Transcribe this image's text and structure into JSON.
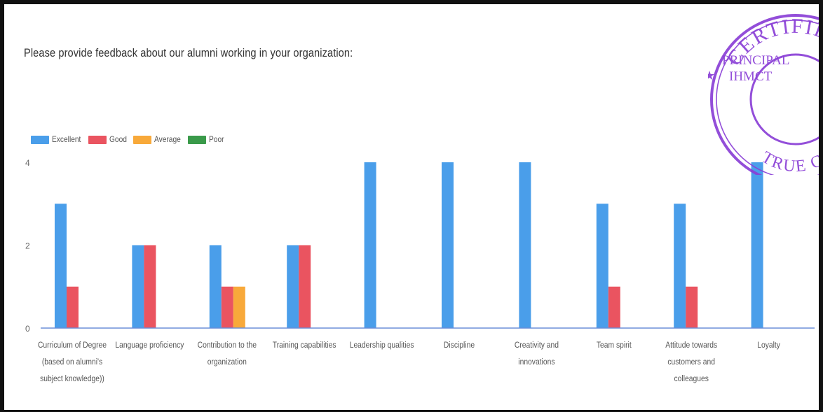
{
  "prompt": {
    "text": "Please provide feedback about our alumni working in your organization:"
  },
  "colors": {
    "Excellent": "#4a9eea",
    "Good": "#ea5460",
    "Average": "#f8a93a",
    "Poor": "#3a9a4a",
    "stamp": "#8a3fd6"
  },
  "legend": [
    {
      "label": "Excellent",
      "color": "#4a9eea"
    },
    {
      "label": "Good",
      "color": "#ea5460"
    },
    {
      "label": "Average",
      "color": "#f8a93a"
    },
    {
      "label": "Poor",
      "color": "#3a9a4a"
    }
  ],
  "chart_data": {
    "type": "bar",
    "title": "",
    "xlabel": "",
    "ylabel": "",
    "ylim": [
      0,
      4
    ],
    "yticks": [
      "0",
      "2",
      "4"
    ],
    "grid": false,
    "legend_position": "top-left",
    "categories": [
      [
        "Curriculum of Degree",
        "(based on alumni's",
        "subject knowledge))"
      ],
      [
        "Language proficiency"
      ],
      [
        "Contribution to the",
        "organization"
      ],
      [
        "Training capabilities"
      ],
      [
        "Leadership qualities"
      ],
      [
        "Discipline"
      ],
      [
        "Creativity and",
        "innovations"
      ],
      [
        "Team spirit"
      ],
      [
        "Attitude towards",
        "customers and",
        "colleagues"
      ],
      [
        "Loyalty"
      ]
    ],
    "series": [
      {
        "name": "Excellent",
        "values": [
          3,
          2,
          2,
          2,
          4,
          4,
          4,
          3,
          3,
          4
        ]
      },
      {
        "name": "Good",
        "values": [
          1,
          2,
          1,
          2,
          0,
          0,
          0,
          1,
          1,
          0
        ]
      },
      {
        "name": "Average",
        "values": [
          0,
          0,
          1,
          0,
          0,
          0,
          0,
          0,
          0,
          0
        ]
      },
      {
        "name": "Poor",
        "values": [
          0,
          0,
          0,
          0,
          0,
          0,
          0,
          0,
          0,
          0
        ]
      }
    ]
  },
  "stamp": {
    "top_text": "CERTIFIED",
    "line1": "PRINCIPAL",
    "line2": "IHMCT",
    "bottom_text": "TRUE COPY"
  }
}
